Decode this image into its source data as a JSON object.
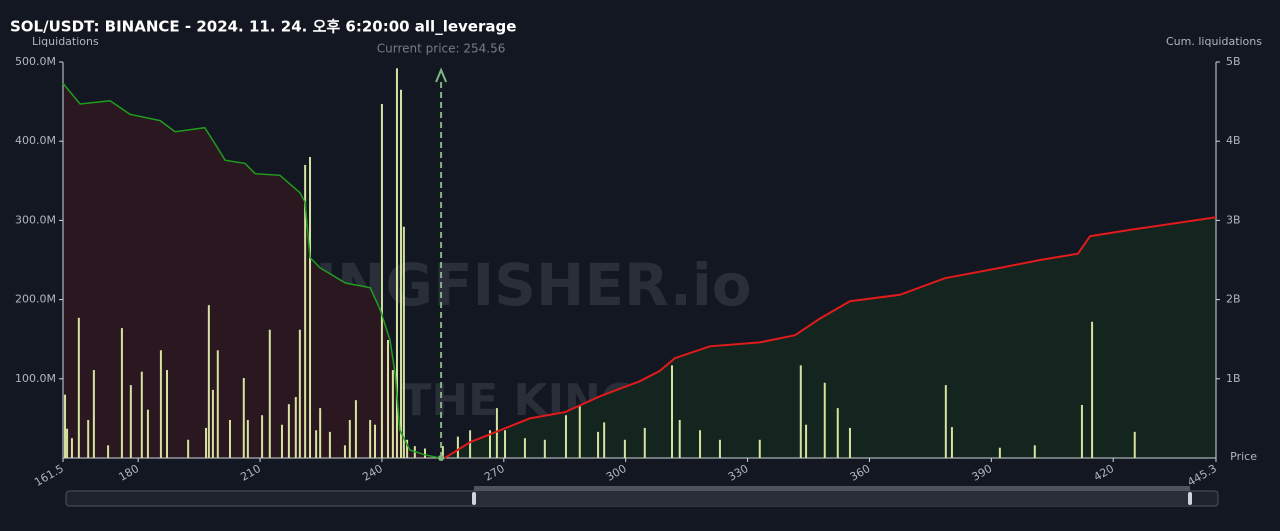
{
  "chart_data": {
    "type": "bar",
    "title": "SOL/USDT: BINANCE - 2024. 11. 24. 오후 6:20:00 all_leverage",
    "y_label": "Liquidations",
    "y2_label": "Cum. liquidations",
    "x_label": "Price",
    "watermark": "THE KINGFISHER.io",
    "annotation": "Current price: 254.56",
    "current_price": 254.56,
    "xlim": [
      161.5,
      445.3
    ],
    "xticks": [
      161.5,
      180,
      210,
      240,
      270,
      300,
      330,
      360,
      390,
      420,
      445.3
    ],
    "ylim": [
      0,
      500000000
    ],
    "yticks": [
      {
        "value": 100000000,
        "label": "100.0M"
      },
      {
        "value": 200000000,
        "label": "200.0M"
      },
      {
        "value": 300000000,
        "label": "300.0M"
      },
      {
        "value": 400000000,
        "label": "400.0M"
      },
      {
        "value": 500000000,
        "label": "500.0M"
      }
    ],
    "y2lim": [
      0,
      5000000000
    ],
    "y2ticks": [
      {
        "value": 1000000000,
        "label": "1B"
      },
      {
        "value": 2000000000,
        "label": "2B"
      },
      {
        "value": 3000000000,
        "label": "3B"
      },
      {
        "value": 4000000000,
        "label": "4B"
      },
      {
        "value": 5000000000,
        "label": "5B"
      }
    ],
    "bars": {
      "color": "#d6e3a0",
      "x": [
        162.0,
        162.5,
        163.7,
        165.4,
        167.7,
        169.1,
        172.6,
        176.0,
        178.2,
        180.9,
        182.4,
        185.6,
        187.1,
        192.3,
        196.7,
        197.4,
        198.4,
        199.6,
        202.6,
        206.0,
        207.0,
        210.5,
        212.4,
        215.4,
        217.1,
        218.8,
        219.8,
        221.1,
        222.3,
        223.8,
        224.8,
        227.2,
        230.9,
        232.1,
        233.6,
        237.1,
        238.3,
        240.0,
        241.5,
        242.7,
        243.7,
        244.7,
        245.4,
        246.2,
        248.1,
        250.6,
        255.0,
        258.7,
        261.7,
        266.6,
        268.3,
        270.3,
        275.2,
        280.1,
        285.3,
        288.7,
        293.2,
        294.7,
        299.8,
        304.7,
        311.4,
        313.3,
        318.3,
        323.2,
        333.0,
        343.1,
        344.4,
        349.0,
        352.2,
        355.2,
        378.8,
        380.3,
        392.1,
        400.7,
        412.3,
        414.8,
        425.3
      ],
      "values": [
        80000000,
        37000000,
        25000000,
        177000000,
        48000000,
        111000000,
        16000000,
        164000000,
        92000000,
        109000000,
        61000000,
        136000000,
        111000000,
        23000000,
        38000000,
        193000000,
        86000000,
        136000000,
        48000000,
        101000000,
        48000000,
        54000000,
        162000000,
        42000000,
        68000000,
        77000000,
        162000000,
        370000000,
        380000000,
        35000000,
        63000000,
        33000000,
        16000000,
        48000000,
        73000000,
        48000000,
        42000000,
        447000000,
        149000000,
        111000000,
        492000000,
        465000000,
        292000000,
        23000000,
        15000000,
        12000000,
        15000000,
        27000000,
        35000000,
        35000000,
        63000000,
        35000000,
        25000000,
        23000000,
        54000000,
        67000000,
        33000000,
        45000000,
        23000000,
        38000000,
        117000000,
        48000000,
        35000000,
        23000000,
        23000000,
        117000000,
        42000000,
        95000000,
        63000000,
        38000000,
        92000000,
        39000000,
        13000000,
        16000000,
        67000000,
        172000000,
        33000000
      ]
    },
    "short_cum": {
      "color": "#1f9d1f",
      "fill": "#2b1720",
      "x": [
        161.5,
        165.7,
        173.1,
        178.0,
        185.4,
        189.1,
        196.4,
        198.9,
        201.4,
        206.3,
        208.8,
        214.9,
        219.8,
        221.1,
        222.3,
        224.8,
        231.0,
        237.1,
        239.6,
        242.0,
        243.3,
        244.4,
        246.9,
        250.6,
        254.3
      ],
      "values": [
        4730000000,
        4470000000,
        4510000000,
        4340000000,
        4260000000,
        4120000000,
        4170000000,
        3970000000,
        3760000000,
        3720000000,
        3590000000,
        3570000000,
        3350000000,
        3230000000,
        2530000000,
        2400000000,
        2210000000,
        2150000000,
        1870000000,
        1490000000,
        1050000000,
        350000000,
        100000000,
        40000000,
        0
      ]
    },
    "long_cum": {
      "color": "#e01b1b",
      "fill": "#14241f",
      "x": [
        255.5,
        261.7,
        269.1,
        276.4,
        285.1,
        293.7,
        303.5,
        308.4,
        312.1,
        320.7,
        333.0,
        341.7,
        347.8,
        355.2,
        367.5,
        378.6,
        392.1,
        402.0,
        411.3,
        414.3,
        424.1,
        445.3
      ],
      "values": [
        0,
        200000000,
        350000000,
        500000000,
        580000000,
        780000000,
        970000000,
        1100000000,
        1260000000,
        1410000000,
        1460000000,
        1550000000,
        1760000000,
        1980000000,
        2060000000,
        2270000000,
        2400000000,
        2500000000,
        2580000000,
        2800000000,
        2880000000,
        3040000000
      ]
    }
  }
}
